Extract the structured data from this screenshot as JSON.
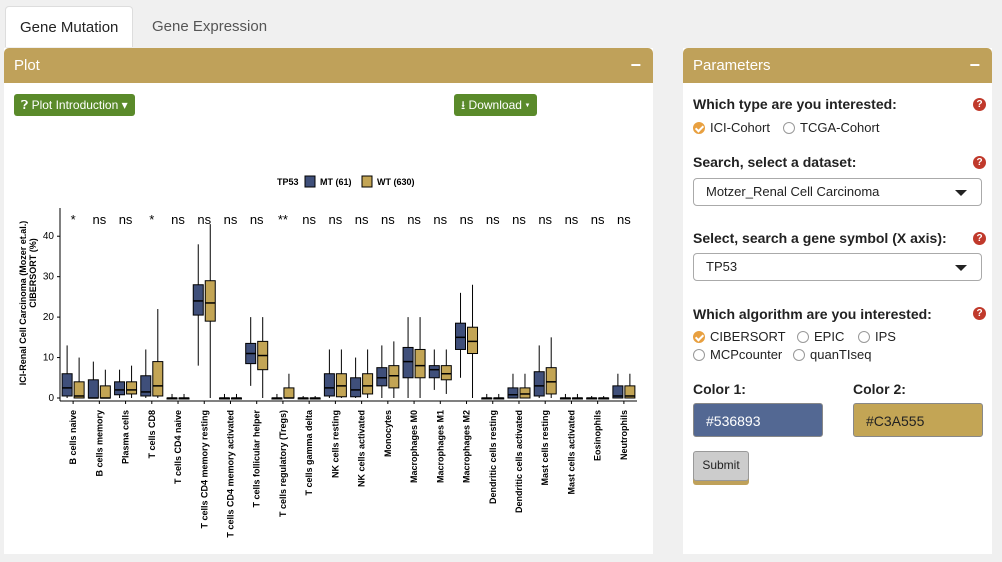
{
  "tabs": [
    {
      "label": "Gene Mutation",
      "active": true
    },
    {
      "label": "Gene Expression",
      "active": false
    }
  ],
  "plot_panel": {
    "title": "Plot",
    "collapse": "−",
    "intro_button": "Plot Introduction",
    "download_button": "Download"
  },
  "params_panel": {
    "title": "Parameters",
    "collapse": "−",
    "type_question": "Which type are you interested:",
    "type_options": [
      "ICI-Cohort",
      "TCGA-Cohort"
    ],
    "type_selected": "ICI-Cohort",
    "dataset_question": "Search, select a dataset:",
    "dataset_value": "Motzer_Renal Cell Carcinoma",
    "gene_question": "Select, search a gene symbol (X axis):",
    "gene_value": "TP53",
    "algo_question": "Which algorithm are you interested:",
    "algo_options": [
      "CIBERSORT",
      "EPIC",
      "IPS",
      "MCPcounter",
      "quanTIseq"
    ],
    "algo_selected": "CIBERSORT",
    "color1_label": "Color 1:",
    "color1_value": "#536893",
    "color2_label": "Color 2:",
    "color2_value": "#C3A555",
    "submit_label": "Submit",
    "help_glyph": "?"
  },
  "chart_data": {
    "type": "box",
    "ylabel": "ICI-Renal Cell Carcinoma (Mozer et.al.) CIBERSORT (%)",
    "ylim": [
      0,
      45
    ],
    "yticks": [
      0,
      10,
      20,
      30,
      40
    ],
    "legend": {
      "title": "TP53",
      "entries": [
        "MT (61)",
        "WT (630)"
      ],
      "placement": "top"
    },
    "colors": {
      "MT": "#3f4f7a",
      "WT": "#c3a555"
    },
    "categories": [
      "B cells naive",
      "B cells memory",
      "Plasma cells",
      "T cells CD8",
      "T cells CD4 naive",
      "T cells CD4 memory resting",
      "T cells CD4 memory activated",
      "T cells follicular helper",
      "T cells regulatory (Tregs)",
      "T cells gamma delta",
      "NK cells resting",
      "NK cells activated",
      "Monocytes",
      "Macrophages M0",
      "Macrophages M1",
      "Macrophages M2",
      "Dendritic cells resting",
      "Dendritic cells activated",
      "Mast cells resting",
      "Mast cells activated",
      "Eosinophils",
      "Neutrophils"
    ],
    "significance": [
      "*",
      "ns",
      "ns",
      "*",
      "ns",
      "ns",
      "ns",
      "ns",
      "**",
      "ns",
      "ns",
      "ns",
      "ns",
      "ns",
      "ns",
      "ns",
      "ns",
      "ns",
      "ns",
      "ns",
      "ns",
      "ns"
    ],
    "series": [
      {
        "name": "MT",
        "boxes": [
          [
            0,
            0.5,
            2.5,
            6,
            13
          ],
          [
            0,
            0,
            0,
            4.5,
            9
          ],
          [
            0,
            0.8,
            2,
            4,
            7
          ],
          [
            0,
            0.5,
            1.5,
            5.5,
            12
          ],
          [
            0,
            0,
            0,
            0,
            1
          ],
          [
            8,
            20.5,
            24,
            28,
            38
          ],
          [
            0,
            0,
            0,
            0,
            1
          ],
          [
            3,
            8.5,
            11,
            13.5,
            20
          ],
          [
            0,
            0,
            0,
            0,
            1
          ],
          [
            0,
            0,
            0,
            0,
            0.5
          ],
          [
            0,
            0.5,
            2.5,
            6,
            12
          ],
          [
            0,
            0.3,
            2,
            5,
            10
          ],
          [
            0,
            3,
            5,
            7.5,
            13
          ],
          [
            0,
            5,
            9,
            12.5,
            20
          ],
          [
            2,
            5,
            7,
            8,
            12
          ],
          [
            5,
            12,
            15,
            18.5,
            26
          ],
          [
            0,
            0,
            0,
            0,
            1
          ],
          [
            0,
            0,
            0.8,
            2.5,
            6
          ],
          [
            0,
            0.5,
            3,
            6.5,
            13
          ],
          [
            0,
            0,
            0,
            0,
            1
          ],
          [
            0,
            0,
            0,
            0,
            0.5
          ],
          [
            0,
            0,
            0.5,
            3,
            6
          ]
        ]
      },
      {
        "name": "WT",
        "boxes": [
          [
            0,
            0,
            0.5,
            4,
            10
          ],
          [
            0,
            0,
            0,
            3,
            7
          ],
          [
            0,
            1,
            2,
            4,
            8
          ],
          [
            0,
            0.5,
            3,
            9,
            22
          ],
          [
            0,
            0,
            0,
            0,
            1
          ],
          [
            0,
            19,
            23.5,
            29,
            43
          ],
          [
            0,
            0,
            0,
            0,
            1
          ],
          [
            0,
            7,
            10.5,
            14,
            20
          ],
          [
            0,
            0,
            0,
            2.5,
            6
          ],
          [
            0,
            0,
            0,
            0,
            0.5
          ],
          [
            0,
            0.3,
            3,
            6,
            12
          ],
          [
            0,
            1,
            3,
            6,
            12
          ],
          [
            0,
            2.5,
            5.5,
            8,
            14
          ],
          [
            0,
            5,
            8,
            12,
            20
          ],
          [
            1,
            4.5,
            6,
            8,
            12
          ],
          [
            0,
            11,
            14,
            17.5,
            28
          ],
          [
            0,
            0,
            0,
            0,
            1
          ],
          [
            0,
            0,
            1,
            2.5,
            6
          ],
          [
            0,
            1,
            4,
            7.5,
            15
          ],
          [
            0,
            0,
            0,
            0,
            1
          ],
          [
            0,
            0,
            0,
            0,
            0.5
          ],
          [
            0,
            0,
            0.5,
            3,
            6
          ]
        ]
      }
    ]
  }
}
